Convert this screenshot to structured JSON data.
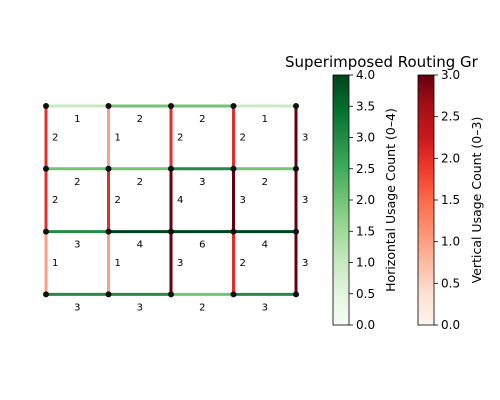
{
  "chart_data": {
    "type": "heatmap",
    "title": "Superimposed Routing Gr",
    "grid": {
      "cols": [
        0,
        1,
        2,
        3,
        4
      ],
      "rows": [
        0,
        1,
        2,
        3
      ]
    },
    "horizontal_edges": [
      {
        "row": 0,
        "values": [
          1,
          2,
          2,
          1
        ]
      },
      {
        "row": 1,
        "values": [
          2,
          2,
          3,
          2
        ]
      },
      {
        "row": 2,
        "values": [
          3,
          4,
          6,
          4
        ]
      },
      {
        "row": 3,
        "values": [
          3,
          3,
          2,
          3
        ]
      }
    ],
    "vertical_edges": [
      {
        "segment": 0,
        "values": [
          2,
          1,
          2,
          2,
          3
        ]
      },
      {
        "segment": 1,
        "values": [
          2,
          2,
          4,
          3,
          3
        ]
      },
      {
        "segment": 2,
        "values": [
          1,
          1,
          3,
          2,
          3
        ]
      }
    ],
    "colorbars": [
      {
        "label": "Horizontal Usage Count (0–4)",
        "cmap": "Greens",
        "range": [
          0,
          4
        ],
        "ticks": [
          "0.0",
          "0.5",
          "1.0",
          "1.5",
          "2.0",
          "2.5",
          "3.0",
          "3.5",
          "4.0"
        ]
      },
      {
        "label": "Vertical Usage Count (0–3)",
        "cmap": "Reds",
        "range": [
          0,
          3
        ],
        "ticks": [
          "0.0",
          "0.5",
          "1.0",
          "1.5",
          "2.0",
          "2.5",
          "3.0"
        ]
      }
    ],
    "colors": {
      "node": "#111111",
      "greens_low": "#f7fcf5",
      "greens_high": "#00441b",
      "reds_low": "#fff5f0",
      "reds_high": "#67000d"
    }
  }
}
